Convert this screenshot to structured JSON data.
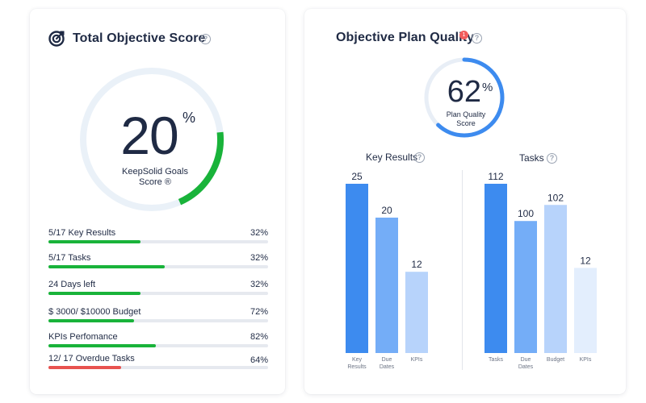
{
  "score_card": {
    "title": "Total Objective Score",
    "help": "?",
    "score": "20",
    "score_unit": "%",
    "score_label_line1": "KeepSolid Goals",
    "score_label_line2": "Score ®",
    "gauge_fraction": 0.2,
    "colors": {
      "gauge": "#19b33a",
      "track": "#eaf1f8",
      "bar_good": "#19b33a",
      "bar_bad": "#e8524f"
    },
    "metrics": [
      {
        "label": "5/17 Key Results",
        "percent": "32%",
        "fill": 0.42,
        "status": "good"
      },
      {
        "label": "5/17 Tasks",
        "percent": "32%",
        "fill": 0.53,
        "status": "good"
      },
      {
        "label": "24 Days left",
        "percent": "32%",
        "fill": 0.42,
        "status": "good"
      },
      {
        "label": "$ 3000/ $10000 Budget",
        "percent": "72%",
        "fill": 0.39,
        "status": "good"
      },
      {
        "label": "KPIs Perfomance",
        "percent": "82%",
        "fill": 0.49,
        "status": "good"
      },
      {
        "label": "12/ 17 Overdue Tasks",
        "percent": "64%",
        "fill": 0.33,
        "status": "bad"
      }
    ]
  },
  "plan_card": {
    "title": "Objective Plan Quality",
    "badge": "1",
    "help": "?",
    "score": "62",
    "score_unit": "%",
    "score_label_line1": "Plan Quality",
    "score_label_line2": "Score",
    "gauge_fraction": 0.62,
    "colors": {
      "gauge": "#3d8bef",
      "track": "#e8eef6"
    }
  },
  "chart_data": [
    {
      "type": "bar",
      "title": "Key Results",
      "categories": [
        "Key\nResults",
        "Due\nDates",
        "KPIs"
      ],
      "values": [
        25,
        20,
        12
      ],
      "ylim": [
        0,
        28
      ],
      "colors": [
        "#3d8bef",
        "#74adf7",
        "#b7d3fb"
      ]
    },
    {
      "type": "bar",
      "title": "Tasks",
      "categories": [
        "Tasks",
        "Due\nDates",
        "Budget",
        "KPIs"
      ],
      "values": [
        112,
        100,
        102,
        12
      ],
      "ylim": [
        0,
        125
      ],
      "colors": [
        "#3d8bef",
        "#74adf7",
        "#b7d3fb",
        "#e3eefd"
      ],
      "visual_heights": [
        1.0,
        0.78,
        0.875,
        0.503
      ]
    }
  ]
}
